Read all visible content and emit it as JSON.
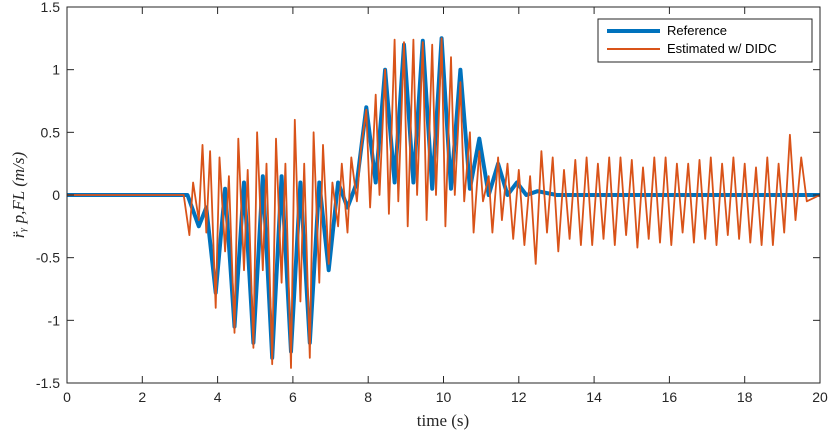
{
  "chart_data": {
    "type": "line",
    "title": "",
    "xlabel": "time (s)",
    "ylabel": "r̈ᵧ p,FL (m/s)",
    "xlim": [
      0,
      20
    ],
    "ylim": [
      -1.5,
      1.5
    ],
    "x_ticks": [
      0,
      2,
      4,
      6,
      8,
      10,
      12,
      14,
      16,
      18,
      20
    ],
    "x_tick_labels": [
      "0",
      "2",
      "4",
      "6",
      "8",
      "10",
      "12",
      "14",
      "16",
      "18",
      "20"
    ],
    "y_ticks": [
      -1.5,
      -1,
      -0.5,
      0,
      0.5,
      1,
      1.5
    ],
    "y_tick_labels": [
      "-1.5",
      "-1",
      "-0.5",
      "0",
      "0.5",
      "1",
      "1.5"
    ],
    "grid": false,
    "legend_position": "top-right",
    "colors": {
      "reference": "#0072BD",
      "estimated": "#D95319",
      "axis": "#262626"
    },
    "series": [
      {
        "name": "Reference",
        "color": "#0072BD",
        "x": [
          0,
          3.2,
          3.5,
          3.7,
          3.95,
          4.2,
          4.45,
          4.7,
          4.95,
          5.2,
          5.45,
          5.7,
          5.95,
          6.2,
          6.45,
          6.7,
          6.95,
          7.2,
          7.45,
          7.7,
          7.95,
          8.2,
          8.45,
          8.7,
          8.95,
          9.2,
          9.45,
          9.7,
          9.95,
          10.2,
          10.45,
          10.7,
          10.95,
          11.2,
          11.45,
          11.7,
          11.95,
          12.2,
          12.5,
          13.0,
          20
        ],
        "y": [
          0,
          0,
          -0.25,
          -0.1,
          -0.78,
          0.05,
          -1.05,
          0.1,
          -1.18,
          0.15,
          -1.3,
          0.15,
          -1.25,
          0.1,
          -1.18,
          0.1,
          -0.6,
          0.1,
          -0.1,
          0.1,
          0.7,
          0.1,
          1.0,
          0.1,
          1.2,
          0.1,
          1.23,
          0.05,
          1.25,
          0.05,
          1.0,
          0.05,
          0.45,
          0.0,
          0.25,
          0.0,
          0.1,
          0.0,
          0.03,
          0,
          0
        ]
      },
      {
        "name": "Estimated w/ DIDC",
        "color": "#D95319",
        "x": [
          0,
          3.1,
          3.25,
          3.35,
          3.5,
          3.6,
          3.7,
          3.8,
          3.95,
          4.05,
          4.2,
          4.3,
          4.45,
          4.55,
          4.7,
          4.8,
          4.95,
          5.05,
          5.2,
          5.3,
          5.45,
          5.55,
          5.7,
          5.8,
          5.95,
          6.05,
          6.2,
          6.3,
          6.45,
          6.55,
          6.7,
          6.8,
          6.95,
          7.05,
          7.2,
          7.3,
          7.45,
          7.55,
          7.7,
          7.8,
          7.95,
          8.05,
          8.2,
          8.3,
          8.45,
          8.55,
          8.7,
          8.8,
          8.95,
          9.05,
          9.2,
          9.3,
          9.45,
          9.55,
          9.7,
          9.8,
          9.95,
          10.05,
          10.2,
          10.3,
          10.45,
          10.55,
          10.7,
          10.8,
          10.95,
          11.05,
          11.2,
          11.3,
          11.45,
          11.55,
          11.7,
          11.85,
          12.0,
          12.15,
          12.3,
          12.45,
          12.6,
          12.75,
          12.9,
          13.05,
          13.2,
          13.35,
          13.5,
          13.65,
          13.8,
          13.95,
          14.1,
          14.25,
          14.4,
          14.55,
          14.7,
          14.85,
          15.0,
          15.15,
          15.3,
          15.45,
          15.6,
          15.75,
          15.9,
          16.05,
          16.2,
          16.35,
          16.5,
          16.65,
          16.8,
          16.95,
          17.1,
          17.25,
          17.4,
          17.55,
          17.7,
          17.85,
          18.0,
          18.15,
          18.3,
          18.45,
          18.6,
          18.75,
          18.9,
          19.05,
          19.2,
          19.35,
          19.5,
          19.65,
          20
        ],
        "y": [
          0,
          0,
          -0.32,
          0.1,
          -0.2,
          0.4,
          -0.3,
          0.35,
          -0.9,
          0.3,
          -0.45,
          0.15,
          -1.1,
          0.45,
          -0.6,
          0.2,
          -1.22,
          0.5,
          -0.6,
          0.25,
          -1.35,
          0.45,
          -0.7,
          0.25,
          -1.38,
          0.6,
          -0.85,
          0.25,
          -1.3,
          0.5,
          -0.7,
          0.4,
          -0.55,
          0.1,
          -0.25,
          0.25,
          -0.3,
          0.3,
          -0.05,
          0.35,
          0.68,
          -0.1,
          0.8,
          0.0,
          1.0,
          -0.15,
          1.24,
          -0.05,
          1.22,
          -0.25,
          1.24,
          0.0,
          1.22,
          -0.2,
          1.2,
          0.0,
          1.25,
          -0.25,
          1.1,
          0.0,
          0.9,
          -0.05,
          0.5,
          -0.3,
          0.35,
          -0.05,
          0.15,
          -0.3,
          0.3,
          -0.2,
          0.25,
          -0.35,
          0.2,
          -0.4,
          0.15,
          -0.55,
          0.35,
          -0.3,
          0.3,
          -0.45,
          0.2,
          -0.35,
          0.28,
          -0.4,
          0.3,
          -0.4,
          0.25,
          -0.35,
          0.3,
          -0.4,
          0.3,
          -0.32,
          0.28,
          -0.42,
          0.22,
          -0.35,
          0.3,
          -0.38,
          0.3,
          -0.4,
          0.25,
          -0.3,
          0.25,
          -0.38,
          0.28,
          -0.35,
          0.3,
          -0.4,
          0.25,
          -0.32,
          0.3,
          -0.35,
          0.25,
          -0.38,
          0.22,
          -0.4,
          0.3,
          -0.4,
          0.25,
          -0.3,
          0.48,
          -0.2,
          0.3,
          -0.05,
          0
        ]
      }
    ]
  }
}
